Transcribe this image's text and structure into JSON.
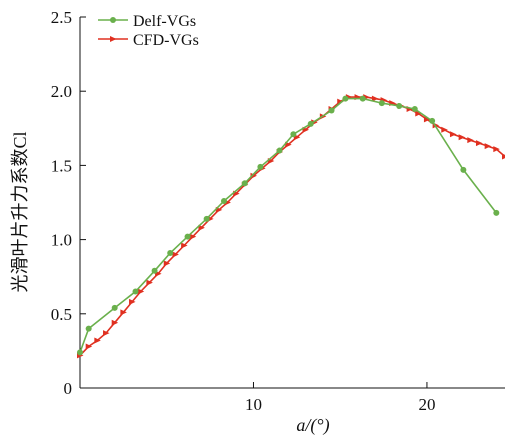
{
  "chart_data": {
    "type": "line",
    "xlabel": "a/(°)",
    "ylabel": "光滑叶片升力系数Cl",
    "xlim": [
      0,
      24.5
    ],
    "ylim": [
      0,
      2.5
    ],
    "xticks": [
      10,
      20
    ],
    "yticks": [
      0,
      0.5,
      1.0,
      1.5,
      2.0,
      2.5
    ],
    "ytick_labels": [
      "0",
      "0.5",
      "1.0",
      "1.5",
      "2.0",
      "2.5"
    ],
    "grid": false,
    "legend_position": "top-left",
    "series": [
      {
        "name": "Delf-VGs",
        "color": "#6ab04c",
        "marker": "circle",
        "x": [
          0,
          0.5,
          2.0,
          3.2,
          4.3,
          5.2,
          6.2,
          7.3,
          8.3,
          9.5,
          10.4,
          11.5,
          12.3,
          13.3,
          14.5,
          15.3,
          16.3,
          17.4,
          18.4,
          19.3,
          20.3,
          22.1,
          24.0
        ],
        "y": [
          0.24,
          0.4,
          0.54,
          0.65,
          0.79,
          0.91,
          1.02,
          1.14,
          1.26,
          1.38,
          1.49,
          1.6,
          1.71,
          1.78,
          1.87,
          1.95,
          1.95,
          1.92,
          1.9,
          1.88,
          1.8,
          1.47,
          1.18
        ]
      },
      {
        "name": "CFD-VGs",
        "color": "#e03020",
        "marker": "triangle-right",
        "x": [
          0,
          0.5,
          1.0,
          1.5,
          2.0,
          2.5,
          3.0,
          3.5,
          4.0,
          4.5,
          5.0,
          5.5,
          6.0,
          6.5,
          7.0,
          7.5,
          8.0,
          8.5,
          9.0,
          9.5,
          10.0,
          10.5,
          11.0,
          11.5,
          12.0,
          12.5,
          13.0,
          13.5,
          14.0,
          14.5,
          15.0,
          15.5,
          16.0,
          16.5,
          17.0,
          17.5,
          18.0,
          18.5,
          19.0,
          19.5,
          20.0,
          20.5,
          21.0,
          21.5,
          22.0,
          22.5,
          23.0,
          23.5,
          24.0,
          24.5
        ],
        "y": [
          0.22,
          0.28,
          0.32,
          0.37,
          0.44,
          0.51,
          0.58,
          0.65,
          0.71,
          0.77,
          0.84,
          0.9,
          0.96,
          1.02,
          1.08,
          1.14,
          1.2,
          1.25,
          1.31,
          1.37,
          1.43,
          1.48,
          1.53,
          1.59,
          1.64,
          1.69,
          1.74,
          1.79,
          1.83,
          1.88,
          1.93,
          1.96,
          1.96,
          1.96,
          1.95,
          1.94,
          1.92,
          1.9,
          1.88,
          1.85,
          1.81,
          1.77,
          1.74,
          1.71,
          1.69,
          1.67,
          1.65,
          1.63,
          1.61,
          1.56
        ]
      }
    ]
  }
}
